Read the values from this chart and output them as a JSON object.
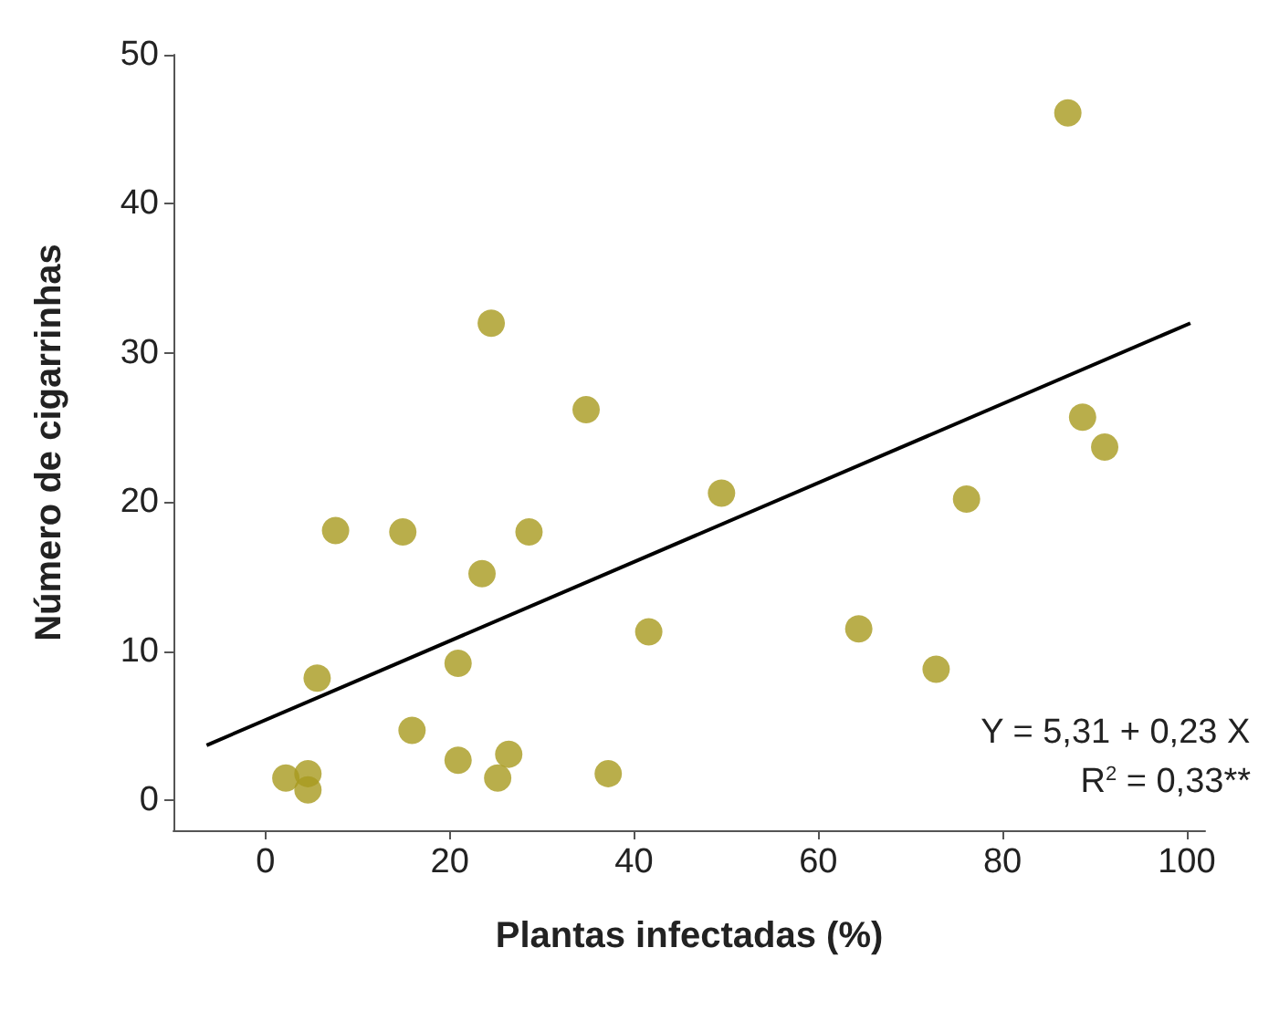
{
  "chart_data": {
    "type": "scatter",
    "xlabel": "Plantas infectadas (%)",
    "ylabel": "Número de cigarrinhas",
    "xlim": [
      -10,
      102
    ],
    "xticks": [
      0,
      20,
      40,
      60,
      80,
      100
    ],
    "ylim": [
      -2,
      50
    ],
    "yticks": [
      0,
      10,
      20,
      30,
      40,
      50
    ],
    "grid": false,
    "marker": "circle",
    "series": [
      {
        "color": "#a89a1e",
        "x": [
          2.2,
          4.6,
          4.6,
          5.6,
          7.6,
          14.9,
          15.9,
          20.9,
          20.9,
          23.5,
          24.5,
          25.2,
          26.4,
          28.6,
          34.8,
          37.2,
          41.6,
          49.5,
          64.4,
          72.8,
          76.1,
          87.1,
          88.7,
          91.1
        ],
        "values": [
          1.5,
          1.8,
          0.7,
          8.2,
          18.1,
          18.0,
          4.7,
          9.2,
          2.7,
          15.2,
          32.0,
          1.5,
          3.1,
          18.0,
          26.2,
          1.8,
          11.3,
          20.6,
          11.5,
          8.8,
          20.2,
          46.1,
          25.7,
          23.7
        ]
      },
      {
        "type": "line",
        "marker": "none",
        "color": "#000000",
        "x": [
          -6.4,
          100.4
        ],
        "values": [
          3.7,
          32.0
        ]
      }
    ],
    "annotations": [
      "Y = 5,31 + 0,23 X",
      "R$^{2}$ = 0,33**"
    ]
  }
}
